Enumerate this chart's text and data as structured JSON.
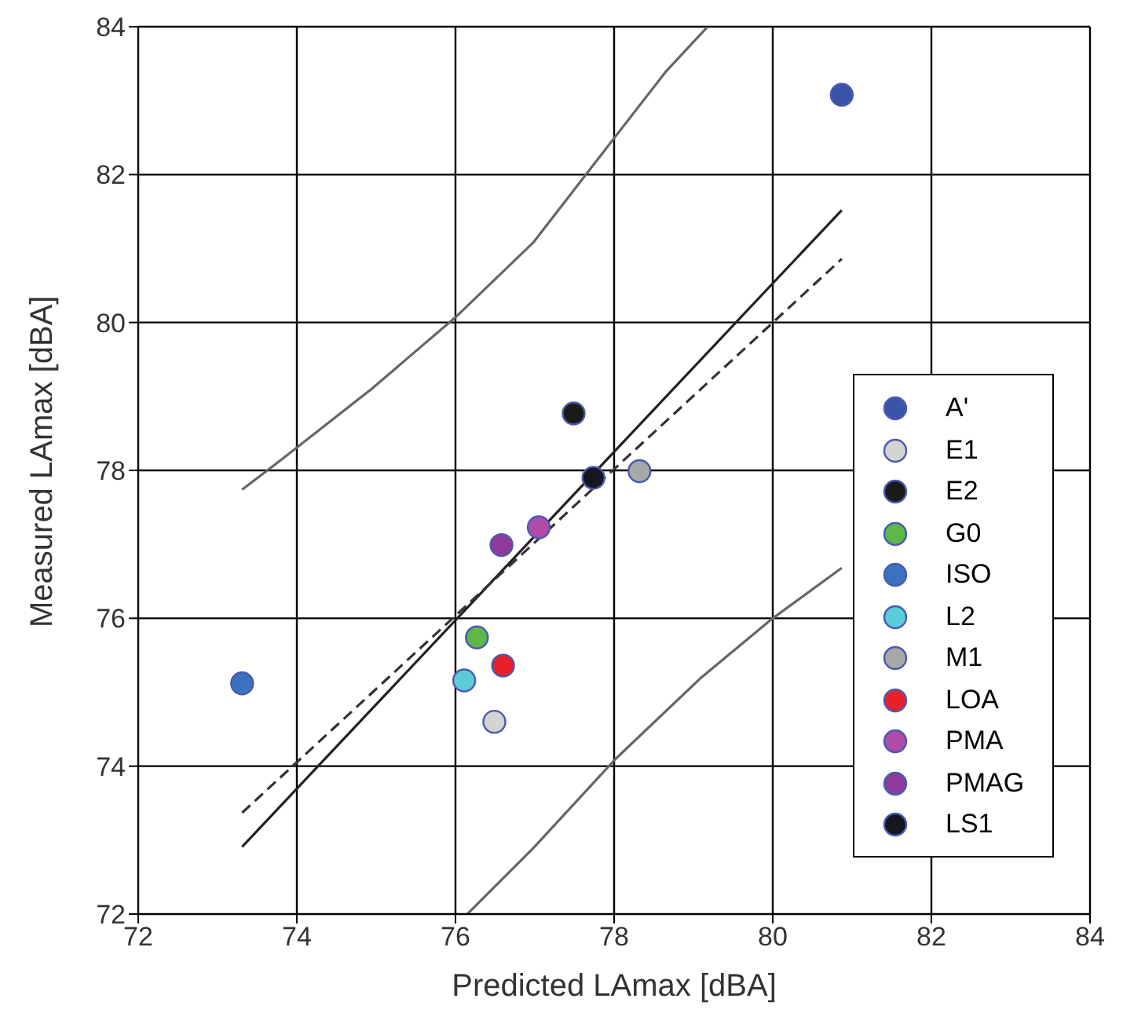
{
  "chart_data": {
    "type": "scatter",
    "xlabel": "Predicted LAmax [dBA]",
    "ylabel": "Measured LAmax [dBA]",
    "xlim": [
      72,
      84
    ],
    "xticks": [
      72,
      74,
      76,
      78,
      80,
      82,
      84
    ],
    "ylim": [
      72,
      84
    ],
    "yticks": [
      72,
      74,
      76,
      78,
      80,
      82,
      84
    ],
    "grid": true,
    "legend": "right",
    "marker": "circle",
    "series": [
      {
        "type": "line",
        "marker": "none",
        "color": "#222222",
        "line_style": "solid",
        "x": [
          73.31,
          80.87
        ],
        "values": [
          72.91,
          81.52
        ]
      },
      {
        "type": "line",
        "marker": "none",
        "color": "#333333",
        "line_style": "dashed",
        "x": [
          73.31,
          80.87
        ],
        "values": [
          73.37,
          80.86
        ]
      },
      {
        "type": "line",
        "marker": "none",
        "color": "#666666",
        "line_style": "solid",
        "x": [
          73.31,
          73.8,
          74.94,
          76,
          76.98,
          78.02,
          78.65,
          79.18
        ],
        "values": [
          77.74,
          78.14,
          79.1,
          80.07,
          81.08,
          82.52,
          83.39,
          84
        ]
      },
      {
        "type": "line",
        "marker": "none",
        "color": "#666666",
        "line_style": "solid",
        "x": [
          76.15,
          76.98,
          78.02,
          79.1,
          80,
          80.87
        ],
        "values": [
          72,
          72.89,
          74.1,
          75.2,
          76,
          76.68
        ]
      },
      {
        "name": "A'",
        "color": "#3a55a8",
        "x": [
          80.87
        ],
        "values": [
          83.08
        ]
      },
      {
        "name": "E1",
        "color": "#d4d4d4",
        "x": [
          76.49
        ],
        "values": [
          74.6
        ]
      },
      {
        "name": "E2",
        "color": "#1a1a1a",
        "x": [
          77.49
        ],
        "values": [
          78.77
        ]
      },
      {
        "name": "G0",
        "color": "#5cb848",
        "x": [
          76.27
        ],
        "values": [
          75.74
        ]
      },
      {
        "name": "ISO",
        "color": "#3b72c0",
        "x": [
          73.31
        ],
        "values": [
          75.12
        ]
      },
      {
        "name": "L2",
        "color": "#5ccbd8",
        "x": [
          76.11
        ],
        "values": [
          75.16
        ]
      },
      {
        "name": "M1",
        "color": "#a8a8a8",
        "x": [
          78.32
        ],
        "values": [
          77.99
        ]
      },
      {
        "name": "LOA",
        "color": "#e8202a",
        "x": [
          76.6
        ],
        "values": [
          75.36
        ]
      },
      {
        "name": "PMA",
        "color": "#b04ca8",
        "x": [
          77.05
        ],
        "values": [
          77.23
        ]
      },
      {
        "name": "PMAG",
        "color": "#8e3a9c",
        "x": [
          76.58
        ],
        "values": [
          76.99
        ]
      },
      {
        "name": "LS1",
        "color": "#161620",
        "x": [
          77.74
        ],
        "values": [
          77.9
        ]
      }
    ]
  }
}
